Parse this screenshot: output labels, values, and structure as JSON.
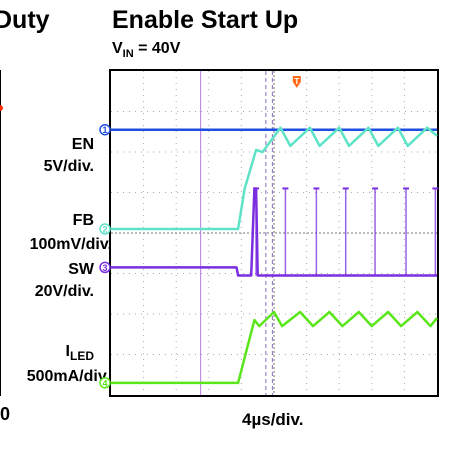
{
  "left_panel": {
    "title_fragment": "Duty",
    "axis_fragment": "0"
  },
  "header": {
    "title": "Enable Start Up",
    "vin_prefix": "V",
    "vin_sub": "IN",
    "vin_suffix": " = 40V"
  },
  "channel_labels": {
    "en": {
      "name": "EN",
      "scale": "5V/div."
    },
    "fb": {
      "name": "FB",
      "scale": "100mV/div."
    },
    "sw": {
      "name": "SW",
      "scale": "20V/div."
    },
    "iled": {
      "name_prefix": "I",
      "name_sub": "LED",
      "scale": "500mA/div."
    }
  },
  "markers": {
    "en": "1",
    "fb": "2",
    "sw": "3",
    "iled": "4",
    "trigger": "T"
  },
  "chart_data": {
    "type": "line",
    "title": "Enable Start Up",
    "subtitle": "VIN = 40V",
    "xlabel": "4µs/div.",
    "x_divisions": 10,
    "y_divisions": 8,
    "x_unit": "div",
    "y_unit": "div",
    "grid": true,
    "series": [
      {
        "name": "EN",
        "scale": "5V/div.",
        "color": "#1f4fe0",
        "x": [
          0,
          10
        ],
        "y": [
          6.55,
          6.55
        ]
      },
      {
        "name": "FB",
        "scale": "100mV/div.",
        "color": "#5fe3c6",
        "x": [
          0,
          3.9,
          4.1,
          4.45,
          4.65,
          5.2,
          5.5,
          6.1,
          6.4,
          7.0,
          7.3,
          7.9,
          8.2,
          8.8,
          9.1,
          9.7,
          10
        ],
        "y": [
          4.1,
          4.1,
          5.1,
          6.05,
          6.0,
          6.6,
          6.15,
          6.6,
          6.15,
          6.6,
          6.15,
          6.6,
          6.15,
          6.6,
          6.15,
          6.6,
          6.4
        ]
      },
      {
        "name": "SW",
        "scale": "20V/div.",
        "color": "#7a2ee0",
        "x": [
          0,
          3.85,
          3.9,
          4.3,
          4.4,
          4.45,
          4.5,
          10
        ],
        "y": [
          3.15,
          3.15,
          2.95,
          2.95,
          5.1,
          5.1,
          2.95,
          2.95
        ]
      },
      {
        "name": "ILED",
        "scale": "500mA/div.",
        "color": "#5ae61a",
        "x": [
          0,
          3.9,
          4.4,
          4.55,
          5.0,
          5.25,
          5.8,
          6.2,
          6.7,
          7.1,
          7.6,
          8.0,
          8.5,
          8.9,
          9.4,
          9.8,
          10
        ],
        "y": [
          0.3,
          0.3,
          1.85,
          1.7,
          2.05,
          1.7,
          2.05,
          1.7,
          2.05,
          1.7,
          2.05,
          1.7,
          2.05,
          1.7,
          2.05,
          1.7,
          1.9
        ]
      }
    ],
    "sw_pulses_x": [
      4.45,
      5.35,
      6.3,
      7.2,
      8.1,
      9.05,
      9.95
    ],
    "cursors_x": [
      2.75,
      4.75,
      4.95
    ],
    "trigger_x": 5.7
  }
}
